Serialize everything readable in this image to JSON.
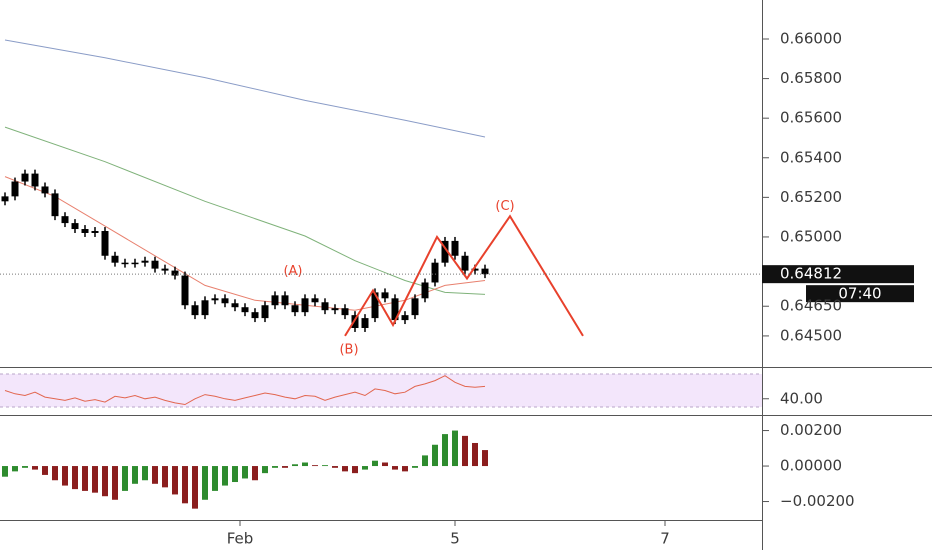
{
  "chart_data": [
    {
      "type": "candlestick",
      "color": "#000000",
      "x": [
        0,
        1,
        2,
        3,
        4,
        5,
        6,
        7,
        8,
        9,
        10,
        11,
        12,
        13,
        14,
        15,
        16,
        17,
        18,
        19,
        20,
        21,
        22,
        23,
        24,
        25,
        26,
        27,
        28,
        29,
        30,
        31,
        32,
        33,
        34,
        35,
        36,
        37,
        38,
        39,
        40,
        41,
        42,
        43,
        44,
        45,
        46,
        47,
        48
      ],
      "open": [
        0.6518,
        0.65205,
        0.6528,
        0.6532,
        0.65255,
        0.6522,
        0.65105,
        0.6507,
        0.6504,
        0.6502,
        0.6503,
        0.64905,
        0.6487,
        0.64865,
        0.6487,
        0.6488,
        0.6484,
        0.6483,
        0.64805,
        0.64655,
        0.64605,
        0.6468,
        0.6469,
        0.64665,
        0.64645,
        0.6462,
        0.6459,
        0.64655,
        0.64705,
        0.64655,
        0.6462,
        0.6469,
        0.6467,
        0.6463,
        0.6464,
        0.64605,
        0.6454,
        0.6459,
        0.6472,
        0.6469,
        0.6458,
        0.64605,
        0.6469,
        0.6477,
        0.6487,
        0.6498,
        0.64905,
        0.6483,
        0.6484
      ],
      "high": [
        0.65225,
        0.653,
        0.6534,
        0.6534,
        0.65275,
        0.6524,
        0.65125,
        0.6509,
        0.6506,
        0.6505,
        0.6505,
        0.64925,
        0.6489,
        0.6489,
        0.649,
        0.649,
        0.6486,
        0.6485,
        0.64825,
        0.64675,
        0.647,
        0.6471,
        0.6471,
        0.64685,
        0.64665,
        0.6464,
        0.64675,
        0.64725,
        0.64725,
        0.64675,
        0.6471,
        0.6471,
        0.6469,
        0.6466,
        0.6466,
        0.64625,
        0.6461,
        0.6474,
        0.6474,
        0.6471,
        0.64625,
        0.6471,
        0.6479,
        0.6489,
        0.65,
        0.65,
        0.64925,
        0.6486,
        0.6486
      ],
      "low": [
        0.6516,
        0.65185,
        0.6526,
        0.65235,
        0.652,
        0.65085,
        0.6505,
        0.6502,
        0.65,
        0.65,
        0.64885,
        0.6485,
        0.64845,
        0.64845,
        0.6485,
        0.6482,
        0.6481,
        0.64785,
        0.64635,
        0.64585,
        0.64585,
        0.6466,
        0.64645,
        0.64625,
        0.646,
        0.6457,
        0.6457,
        0.64635,
        0.64635,
        0.646,
        0.646,
        0.6465,
        0.6461,
        0.6461,
        0.64585,
        0.6452,
        0.6452,
        0.6457,
        0.6467,
        0.6456,
        0.6456,
        0.64585,
        0.6467,
        0.6475,
        0.6485,
        0.64885,
        0.6481,
        0.6481,
        0.64792
      ],
      "close": [
        0.65205,
        0.6528,
        0.6532,
        0.65255,
        0.6522,
        0.65105,
        0.6507,
        0.6504,
        0.6502,
        0.6503,
        0.64905,
        0.6487,
        0.64865,
        0.6487,
        0.6488,
        0.6484,
        0.6483,
        0.64805,
        0.64655,
        0.64605,
        0.6468,
        0.6469,
        0.64665,
        0.64645,
        0.6462,
        0.6459,
        0.64655,
        0.64705,
        0.64655,
        0.6462,
        0.6469,
        0.6467,
        0.6463,
        0.6464,
        0.64605,
        0.6454,
        0.6459,
        0.6472,
        0.6469,
        0.6458,
        0.64605,
        0.6469,
        0.6477,
        0.6487,
        0.6498,
        0.64905,
        0.6483,
        0.6484,
        0.64812
      ],
      "series": [
        {
          "color": "#8a9cc7",
          "x": [
            0,
            10,
            20,
            30,
            40,
            48
          ],
          "values": [
            0.65995,
            0.65905,
            0.65805,
            0.6569,
            0.6559,
            0.65505
          ]
        },
        {
          "color": "#7fb27a",
          "x": [
            0,
            10,
            20,
            30,
            35,
            40,
            44,
            48
          ],
          "values": [
            0.65555,
            0.6538,
            0.6518,
            0.65005,
            0.6488,
            0.6478,
            0.6472,
            0.6471
          ]
        },
        {
          "color": "#e8806e",
          "x": [
            0,
            5,
            10,
            15,
            20,
            25,
            30,
            35,
            40,
            44,
            48
          ],
          "values": [
            0.65305,
            0.65205,
            0.65055,
            0.64905,
            0.64755,
            0.6468,
            0.64655,
            0.6463,
            0.6468,
            0.64755,
            0.6478
          ]
        }
      ],
      "wave": {
        "color": "#e8412c",
        "x": [
          34.0,
          36.8,
          38.8,
          43.2,
          46.2,
          50.5,
          57.8
        ],
        "values": [
          0.645,
          0.6473,
          0.64555,
          0.65,
          0.6479,
          0.65105,
          0.645
        ]
      },
      "annotations": [
        {
          "text": "(A)",
          "x": 28.8,
          "y": 0.64825
        },
        {
          "text": "(B)",
          "x": 34.4,
          "y": 0.6443
        },
        {
          "text": "(C)",
          "x": 50.0,
          "y": 0.65155
        }
      ],
      "last_price_label": "0.64812",
      "countdown": "07:40",
      "xlim": [
        -0.5,
        75.7
      ],
      "ylim": [
        0.64343,
        0.66197
      ],
      "yticks": [
        {
          "value": 0.66,
          "label": "0.66000"
        },
        {
          "value": 0.658,
          "label": "0.65800"
        },
        {
          "value": 0.656,
          "label": "0.65600"
        },
        {
          "value": 0.654,
          "label": "0.65400"
        },
        {
          "value": 0.652,
          "label": "0.65200"
        },
        {
          "value": 0.65,
          "label": "0.65000"
        },
        {
          "value": 0.6465,
          "label": "0.64650"
        },
        {
          "value": 0.645,
          "label": "0.64500"
        }
      ]
    },
    {
      "type": "line",
      "color": "#e2664f",
      "band": [
        30,
        70
      ],
      "band_color": "#f3e6fb",
      "x": [
        0,
        1,
        2,
        3,
        4,
        5,
        6,
        7,
        8,
        9,
        10,
        11,
        12,
        13,
        14,
        15,
        16,
        17,
        18,
        19,
        20,
        21,
        22,
        23,
        24,
        25,
        26,
        27,
        28,
        29,
        30,
        31,
        32,
        33,
        34,
        35,
        36,
        37,
        38,
        39,
        40,
        41,
        42,
        43,
        44,
        45,
        46,
        47,
        48
      ],
      "values": [
        50,
        46,
        44,
        48,
        42,
        40,
        38,
        41,
        37,
        39,
        36,
        43,
        41,
        44,
        40,
        42,
        38,
        35,
        33,
        40,
        45,
        43,
        40,
        38,
        41,
        44,
        47,
        45,
        42,
        40,
        44,
        43,
        38,
        42,
        45,
        48,
        44,
        52,
        50,
        46,
        48,
        55,
        58,
        62,
        68,
        60,
        55,
        54,
        55
      ],
      "xlim": [
        -0.5,
        75.7
      ],
      "ylim": [
        20.3,
        77.3
      ],
      "yticks": [
        {
          "value": 40,
          "label": "40.00"
        }
      ]
    },
    {
      "type": "bar",
      "x": [
        0,
        1,
        2,
        3,
        4,
        5,
        6,
        7,
        8,
        9,
        10,
        11,
        12,
        13,
        14,
        15,
        16,
        17,
        18,
        19,
        20,
        21,
        22,
        23,
        24,
        25,
        26,
        27,
        28,
        29,
        30,
        31,
        32,
        33,
        34,
        35,
        36,
        37,
        38,
        39,
        40,
        41,
        42,
        43,
        44,
        45,
        46,
        47,
        48
      ],
      "values": [
        -0.0006,
        -0.0003,
        -0.0001,
        -0.0002,
        -0.0005,
        -0.0008,
        -0.0011,
        -0.0013,
        -0.0014,
        -0.0015,
        -0.0017,
        -0.0019,
        -0.0014,
        -0.001,
        -0.0008,
        -0.001,
        -0.0012,
        -0.0016,
        -0.0021,
        -0.0024,
        -0.0019,
        -0.0014,
        -0.0011,
        -0.0009,
        -0.0007,
        -0.0008,
        -0.0004,
        -0.0001,
        -0.0001,
        0.0001,
        0.0002,
        5e-05,
        5e-05,
        -0.0001,
        -0.0003,
        -0.0004,
        -0.0002,
        0.0003,
        0.0002,
        -0.0002,
        -0.0003,
        -0.0001,
        0.0006,
        0.0012,
        0.0018,
        0.002,
        0.0017,
        0.0013,
        0.0009
      ],
      "colors": [
        "#2e8b2e",
        "#2e8b2e",
        "#2e8b2e",
        "#8b1e1e",
        "#8b1e1e",
        "#8b1e1e",
        "#8b1e1e",
        "#8b1e1e",
        "#8b1e1e",
        "#8b1e1e",
        "#8b1e1e",
        "#8b1e1e",
        "#2e8b2e",
        "#2e8b2e",
        "#2e8b2e",
        "#8b1e1e",
        "#8b1e1e",
        "#8b1e1e",
        "#8b1e1e",
        "#8b1e1e",
        "#2e8b2e",
        "#2e8b2e",
        "#2e8b2e",
        "#2e8b2e",
        "#2e8b2e",
        "#8b1e1e",
        "#2e8b2e",
        "#2e8b2e",
        "#8b1e1e",
        "#2e8b2e",
        "#2e8b2e",
        "#8b1e1e",
        "#2e8b2e",
        "#8b1e1e",
        "#8b1e1e",
        "#8b1e1e",
        "#2e8b2e",
        "#2e8b2e",
        "#8b1e1e",
        "#8b1e1e",
        "#8b1e1e",
        "#2e8b2e",
        "#2e8b2e",
        "#2e8b2e",
        "#2e8b2e",
        "#2e8b2e",
        "#8b1e1e",
        "#8b1e1e",
        "#8b1e1e"
      ],
      "xlim": [
        -0.5,
        75.7
      ],
      "ylim": [
        -0.00304,
        0.00282
      ],
      "yticks": [
        {
          "value": 0.002,
          "label": "0.00200"
        },
        {
          "value": 0,
          "label": "0.00000"
        },
        {
          "value": -0.002,
          "label": "−0.00200"
        }
      ],
      "xticks": [
        {
          "value": 23.5,
          "label": "Feb"
        },
        {
          "value": 45,
          "label": "5"
        },
        {
          "value": 66,
          "label": "7"
        }
      ]
    }
  ]
}
